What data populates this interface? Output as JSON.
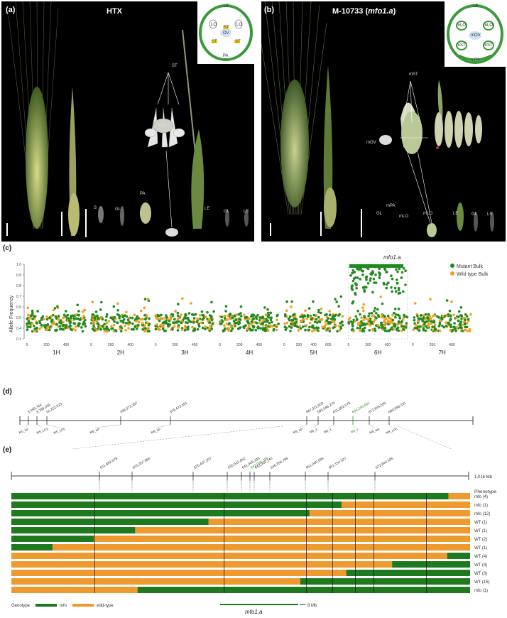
{
  "panel_a": {
    "label": "(a)",
    "title": "HTX",
    "annotations": [
      "ST",
      "OV",
      "LO",
      "LO",
      "S",
      "GL",
      "PA",
      "LE",
      "GL",
      "LS"
    ],
    "floral_diagram": [
      "LE",
      "LO",
      "LO",
      "ST",
      "OV",
      "ST",
      "ST",
      "PA"
    ]
  },
  "panel_b": {
    "label": "(b)",
    "title_prefix": "M-10733 (",
    "title_italic": "mfo1.a",
    "title_suffix": ")",
    "annotations": [
      "mST",
      "mOV",
      "mPA",
      "mLO",
      "LE",
      "GL",
      "LS",
      "GL",
      "mLO"
    ],
    "floral_diagram": [
      "LE",
      "mLO",
      "mLO",
      "mOV",
      "mST",
      "mST",
      "mPA"
    ]
  },
  "panel_c": {
    "label": "(c)",
    "marker_label": "mfo1.a",
    "legend": [
      {
        "name": "Mutant Bulk",
        "color": "#1f8a1f"
      },
      {
        "name": "Wild type Bulk",
        "color": "#f0a020"
      }
    ],
    "chart_data": {
      "type": "scatter",
      "ylabel": "Allele Frequency",
      "ylim": [
        0.3,
        1.0
      ],
      "yticks": [
        "0.3",
        "0.4",
        "0.5",
        "0.6",
        "0.7",
        "0.8",
        "0.9",
        "1.0"
      ],
      "chromosomes": [
        {
          "name": "1H",
          "ticks": [
            "0",
            "200",
            "400"
          ]
        },
        {
          "name": "2H",
          "ticks": [
            "0",
            "200",
            "400"
          ]
        },
        {
          "name": "3H",
          "ticks": [
            "0",
            "200",
            "400"
          ]
        },
        {
          "name": "4H",
          "ticks": [
            "0",
            "200",
            "400"
          ]
        },
        {
          "name": "5H",
          "ticks": [
            "0",
            "200",
            "400",
            "600"
          ]
        },
        {
          "name": "6H",
          "ticks": [
            "0",
            "200",
            "400"
          ]
        },
        {
          "name": "7H",
          "ticks": [
            "0",
            "200",
            "400"
          ]
        }
      ]
    }
  },
  "panel_d": {
    "label": "(d)",
    "top_positions": [
      "3,459,764",
      "3,789,039",
      "12,222,023",
      "198,073,397",
      "378,473,491",
      "587,311,603",
      "595,586,279",
      "611,692,578",
      "634,240,661",
      "672,644,535",
      "689,590,031"
    ],
    "bottom_markers": [
      "M5_bP",
      "M5_LP3",
      "M5_LP5",
      "M6_bP",
      "M8_bP",
      "M9_bP",
      "M6_3",
      "M6_4",
      "M6_6",
      "M8_M4",
      "M8_LP5"
    ],
    "highlight_index": 8,
    "highlight_color": "#2a8a2a"
  },
  "panel_e": {
    "label": "(e)",
    "top_positions": [
      "611,692,578",
      "615,357,856",
      "625,407,207",
      "635,522,652",
      "641,049,333",
      "642,045,339",
      "643,302,140",
      "646,355,708",
      "651,040,595",
      "661,154,527",
      "672,644,535"
    ],
    "end_label": "1,016 Mb",
    "phenotype_header": "Phenotype",
    "rows": [
      {
        "pheno": "mfo (4)",
        "segs": [
          [
            0,
            0.953,
            "m"
          ],
          [
            0.953,
            1,
            "w"
          ]
        ]
      },
      {
        "pheno": "mfo (1)",
        "segs": [
          [
            0,
            0.72,
            "m"
          ],
          [
            0.72,
            1,
            "w"
          ]
        ]
      },
      {
        "pheno": "mfo (12)",
        "segs": [
          [
            0,
            0.65,
            "m"
          ],
          [
            0.65,
            1,
            "w"
          ]
        ]
      },
      {
        "pheno": "WT (1)",
        "segs": [
          [
            0,
            0.43,
            "m"
          ],
          [
            0.43,
            1,
            "w"
          ]
        ]
      },
      {
        "pheno": "WT (1)",
        "segs": [
          [
            0,
            0.27,
            "m"
          ],
          [
            0.27,
            1,
            "w"
          ]
        ]
      },
      {
        "pheno": "WT (2)",
        "segs": [
          [
            0,
            0.18,
            "m"
          ],
          [
            0.18,
            1,
            "w"
          ]
        ]
      },
      {
        "pheno": "WT (1)",
        "segs": [
          [
            0,
            0.09,
            "m"
          ],
          [
            0.09,
            1,
            "w"
          ]
        ]
      },
      {
        "pheno": "WT (4)",
        "segs": [
          [
            0,
            0.95,
            "w"
          ],
          [
            0.95,
            1,
            "m"
          ]
        ]
      },
      {
        "pheno": "WT (4)",
        "segs": [
          [
            0,
            0.83,
            "w"
          ],
          [
            0.83,
            1,
            "m"
          ]
        ]
      },
      {
        "pheno": "WT (3)",
        "segs": [
          [
            0,
            0.73,
            "w"
          ],
          [
            0.73,
            1,
            "m"
          ]
        ]
      },
      {
        "pheno": "WT (15)",
        "segs": [
          [
            0,
            0.63,
            "w"
          ],
          [
            0.63,
            1,
            "m"
          ]
        ]
      },
      {
        "pheno": "mfo (1)",
        "segs": [
          [
            0,
            0.275,
            "w"
          ],
          [
            0.275,
            1,
            "m"
          ]
        ]
      }
    ],
    "genotype_label": "Genotype",
    "legend_mfo": "mfo",
    "legend_wt": "wild-type",
    "colors": {
      "mfo": "#1f7a1f",
      "wt": "#ef9a2e"
    },
    "scale_label": "8 Mb",
    "region_label": "mfo1.a"
  }
}
